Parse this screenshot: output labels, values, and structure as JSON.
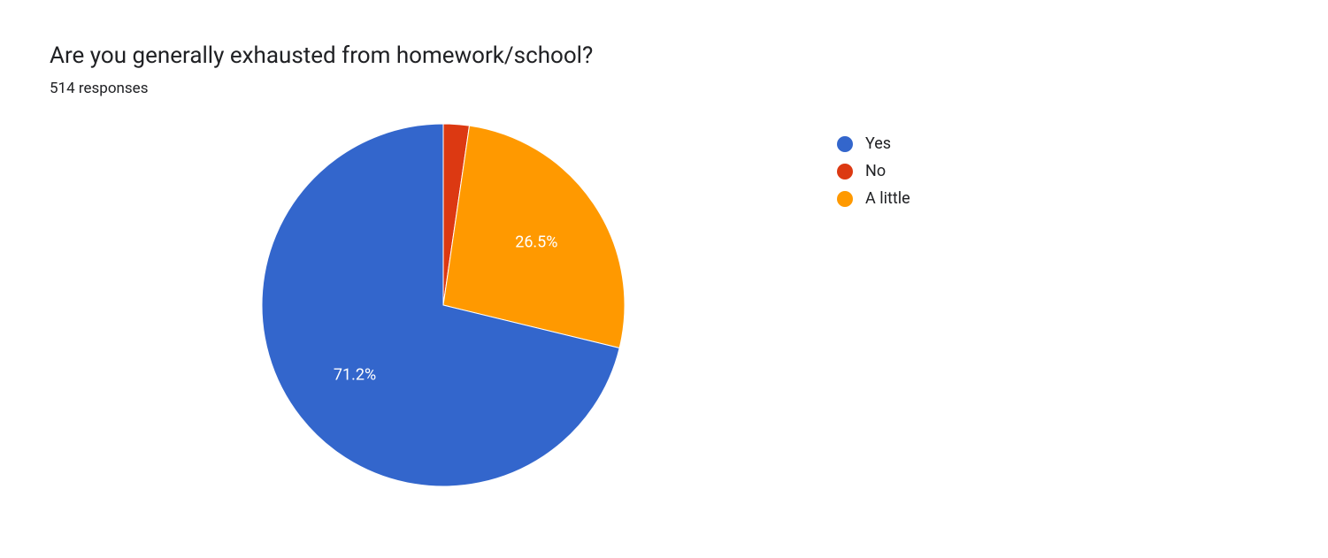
{
  "chart": {
    "type": "pie",
    "title": "Are you generally exhausted from homework/school?",
    "subtitle": "514 responses",
    "title_fontsize": 26,
    "subtitle_fontsize": 17,
    "title_color": "#202124",
    "background_color": "#ffffff",
    "pie_radius": 205,
    "divider_color": "#ffffff",
    "divider_width": 1,
    "slices": [
      {
        "label": "Yes",
        "value": 71.2,
        "color": "#3366cc",
        "show_label": true,
        "display_text": "71.2%"
      },
      {
        "label": "No",
        "value": 2.3,
        "color": "#dc3912",
        "show_label": false,
        "display_text": "2.3%"
      },
      {
        "label": "A little",
        "value": 26.5,
        "color": "#ff9900",
        "show_label": true,
        "display_text": "26.5%"
      }
    ],
    "legend": {
      "items": [
        {
          "label": "Yes",
          "color": "#3366cc"
        },
        {
          "label": "No",
          "color": "#dc3912"
        },
        {
          "label": "A little",
          "color": "#ff9900"
        }
      ],
      "fontsize": 18,
      "swatch_size": 18,
      "text_color": "#202124"
    },
    "label_color": "#ffffff",
    "label_fontsize": 18
  }
}
